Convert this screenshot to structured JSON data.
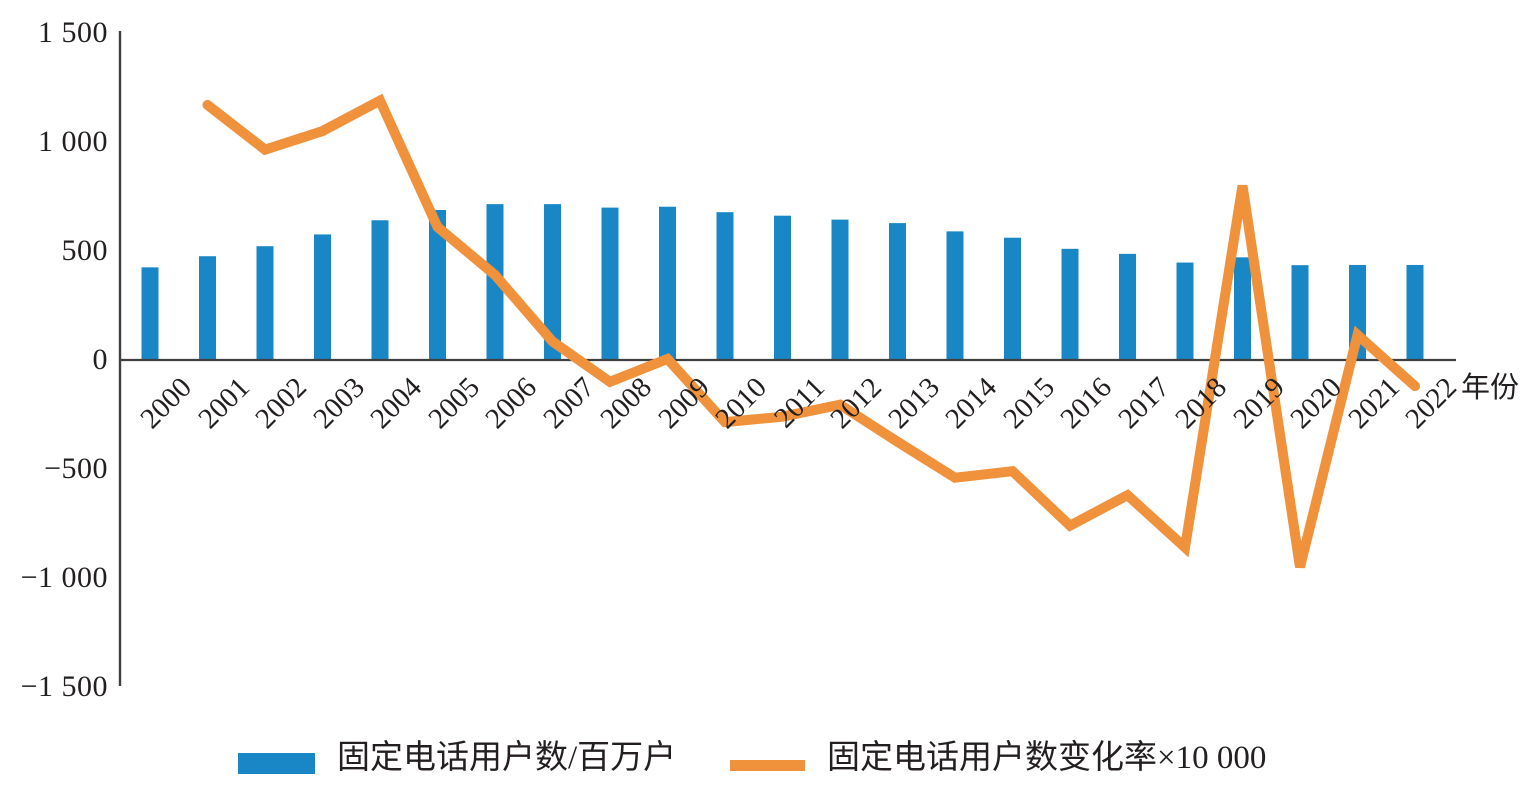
{
  "page": {
    "background": "#ffffff"
  },
  "chart_data": {
    "type": "combo-bar-line",
    "title": "",
    "x_axis_title": "年份",
    "categories": [
      "2000",
      "2001",
      "2002",
      "2003",
      "2004",
      "2005",
      "2006",
      "2007",
      "2008",
      "2009",
      "2010",
      "2011",
      "2012",
      "2013",
      "2014",
      "2015",
      "2016",
      "2017",
      "2018",
      "2019",
      "2020",
      "2021",
      "2022"
    ],
    "series": [
      {
        "name": "固定电话用户数/百万户",
        "type": "bar",
        "color": "#1987C5",
        "values": [
          425,
          476,
          522,
          576,
          641,
          688,
          715,
          715,
          699,
          703,
          678,
          662,
          644,
          628,
          590,
          561,
          510,
          487,
          447,
          471,
          435,
          436,
          436
        ]
      },
      {
        "name": "固定电话用户数变化率×10 000",
        "type": "line",
        "color": "#F0913C",
        "values": [
          null,
          1170,
          965,
          1050,
          1190,
          610,
          390,
          85,
          -100,
          5,
          -285,
          -260,
          -205,
          -375,
          -540,
          -510,
          -760,
          -620,
          -860,
          800,
          -950,
          115,
          -120
        ]
      }
    ],
    "y_axis": {
      "min": -1500,
      "max": 1500,
      "tick_step": 500,
      "ticks": [
        {
          "label": "1 500",
          "value": 1500
        },
        {
          "label": "1 000",
          "value": 1000
        },
        {
          "label": "500",
          "value": 500
        },
        {
          "label": "0",
          "value": 0
        },
        {
          "label": "−500",
          "value": -500
        },
        {
          "label": "−1 000",
          "value": -1000
        },
        {
          "label": "−1 500",
          "value": -1500
        }
      ]
    },
    "legend_position": "bottom",
    "grid": false,
    "axis_color": "#404040"
  }
}
